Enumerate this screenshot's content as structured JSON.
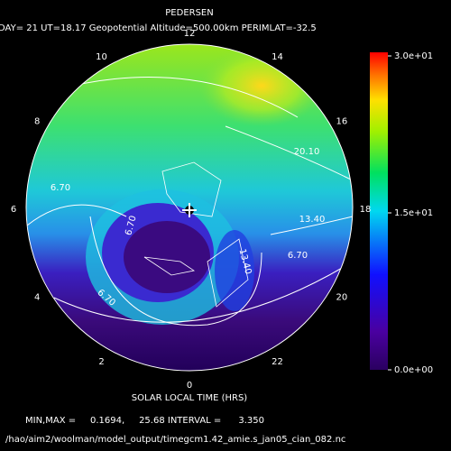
{
  "header": {
    "title": "PEDERSEN",
    "subtitle": "DAY= 21 UT=18.17 Geopotential Altitude=500.00km PERIMLAT=-32.5"
  },
  "hour_labels": [
    "12",
    "14",
    "16",
    "18",
    "20",
    "22",
    "0",
    "2",
    "4",
    "6",
    "8",
    "10"
  ],
  "contour_labels": [
    "20.10",
    "13.40",
    "6.70",
    "6.70",
    "6.70",
    "13.40",
    "6.70"
  ],
  "colorbar": {
    "range": [
      0,
      30
    ],
    "ticks": [
      {
        "value": 0,
        "label": "0.0e+00"
      },
      {
        "value": 15,
        "label": "1.5e+01"
      },
      {
        "value": 30,
        "label": "3.0e+01"
      }
    ]
  },
  "axis_label": "SOLAR LOCAL TIME (HRS)",
  "footer": {
    "stats": "MIN,MAX =     0.1694,     25.68 INTERVAL =      3.350",
    "path": "/hao/aim2/woolman/model_output/timegcm1.42_amie.s_jan05_cian_082.nc"
  }
}
